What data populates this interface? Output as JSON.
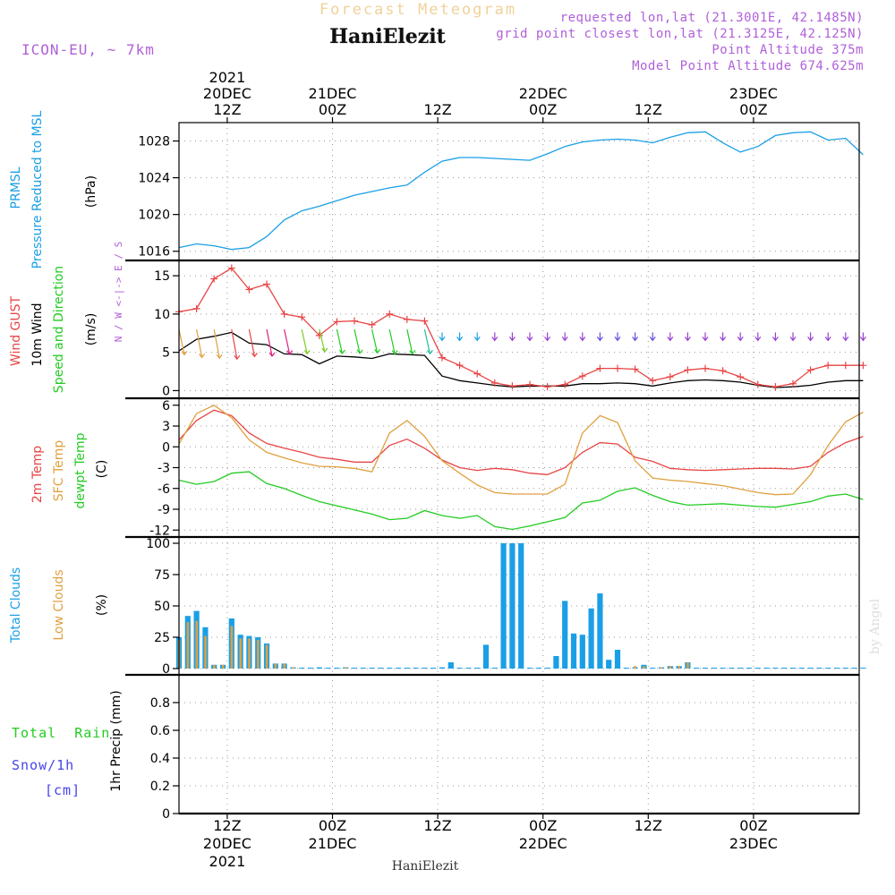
{
  "header": {
    "forecast_title": "Forecast Meteogram",
    "location_name": "HaniElezit",
    "model_label": "ICON-EU, ~ 7km",
    "requested_lonlat": "requested lon,lat (21.3001E, 42.1485N)",
    "grid_point_lonlat": "grid point closest lon,lat (21.3125E, 42.125N)",
    "point_altitude": "Point Altitude 375m",
    "model_point_altitude": "Model Point Altitude 674.625m",
    "footer_name": "HaniElezit",
    "watermark": "by Angel"
  },
  "colors": {
    "pressure": "#1a9fe6",
    "gust": "#e84545",
    "wind": "#000000",
    "temp2m": "#e84545",
    "sfc": "#e0a040",
    "dewpt": "#22cc22",
    "total_clouds": "#1a9fe6",
    "low_clouds": "#e0a040",
    "rain": "#22cc22",
    "snow": "#4444ee",
    "purple": "#b060d8",
    "grid": "#999999"
  },
  "time_axis": {
    "top": [
      {
        "hour": "12Z",
        "date": "20DEC",
        "year": "2021"
      },
      {
        "hour": "00Z",
        "date": "21DEC",
        "year": ""
      },
      {
        "hour": "12Z",
        "date": "",
        "year": ""
      },
      {
        "hour": "00Z",
        "date": "22DEC",
        "year": ""
      },
      {
        "hour": "12Z",
        "date": "",
        "year": ""
      },
      {
        "hour": "00Z",
        "date": "23DEC",
        "year": ""
      }
    ],
    "bottom": [
      {
        "hour": "12Z",
        "date": "20DEC",
        "year": "2021"
      },
      {
        "hour": "00Z",
        "date": "21DEC",
        "year": ""
      },
      {
        "hour": "12Z",
        "date": "",
        "year": ""
      },
      {
        "hour": "00Z",
        "date": "22DEC",
        "year": ""
      },
      {
        "hour": "12Z",
        "date": "",
        "year": ""
      },
      {
        "hour": "00Z",
        "date": "23DEC",
        "year": ""
      }
    ]
  },
  "chart_data": [
    {
      "type": "line",
      "panel": "pressure",
      "title": "PRMSL Pressure Reduced to MSL",
      "ylabel_lines": [
        "PRMSL",
        "Pressure Reduced to MSL"
      ],
      "unit": "(hPa)",
      "ylim": [
        1015,
        1030
      ],
      "yticks": [
        1016,
        1020,
        1024,
        1028
      ],
      "series": [
        {
          "name": "MSL Pressure",
          "color_key": "pressure",
          "x": [
            0,
            2,
            4,
            6,
            8,
            10,
            12,
            14,
            16,
            18,
            20,
            22,
            24,
            26,
            28,
            30,
            32,
            34,
            36,
            38,
            40,
            42,
            44,
            46,
            48,
            50,
            52,
            54,
            56,
            58,
            60,
            62,
            64,
            66,
            68,
            70,
            72,
            74,
            76,
            78
          ],
          "values": [
            1016.4,
            1016.8,
            1016.6,
            1016.2,
            1016.4,
            1017.6,
            1019.4,
            1020.4,
            1020.9,
            1021.5,
            1022.1,
            1022.5,
            1022.9,
            1023.2,
            1024.6,
            1025.8,
            1026.2,
            1026.2,
            1026.1,
            1026.0,
            1025.9,
            1026.6,
            1027.4,
            1027.9,
            1028.1,
            1028.2,
            1028.1,
            1027.8,
            1028.4,
            1028.9,
            1029.0,
            1027.8,
            1026.8,
            1027.4,
            1028.6,
            1028.9,
            1029.0,
            1028.1,
            1028.3,
            1026.5
          ]
        }
      ]
    },
    {
      "type": "line",
      "panel": "wind",
      "title": "Wind GUST / 10m Wind Speed and Direction",
      "ylabel_lines": [
        "Wind GUST",
        "10m Wind",
        "Speed and Direction"
      ],
      "unit": "(m/s)",
      "compass": "N / W <-|-> E / S",
      "ylim": [
        -1,
        17
      ],
      "yticks": [
        0,
        5,
        10,
        15
      ],
      "series": [
        {
          "name": "Wind GUST",
          "color_key": "gust",
          "x": [
            0,
            2,
            4,
            6,
            8,
            10,
            12,
            14,
            16,
            18,
            20,
            22,
            24,
            26,
            28,
            30,
            32,
            34,
            36,
            38,
            40,
            42,
            44,
            46,
            48,
            50,
            52,
            54,
            56,
            58,
            60,
            62,
            64,
            66,
            68,
            70,
            72,
            74,
            76,
            78
          ],
          "values": [
            10.3,
            10.7,
            14.6,
            16.0,
            13.2,
            13.9,
            10.0,
            9.6,
            7.2,
            9.0,
            9.1,
            8.6,
            10.0,
            9.3,
            9.1,
            4.3,
            3.3,
            2.2,
            1.0,
            0.6,
            0.8,
            0.5,
            0.8,
            1.9,
            2.9,
            2.9,
            2.8,
            1.3,
            1.8,
            2.7,
            2.9,
            2.6,
            1.8,
            0.8,
            0.5,
            0.9,
            2.7,
            3.3,
            3.3,
            3.3
          ]
        },
        {
          "name": "10m Wind",
          "color_key": "wind",
          "x": [
            0,
            2,
            4,
            6,
            8,
            10,
            12,
            14,
            16,
            18,
            20,
            22,
            24,
            26,
            28,
            30,
            32,
            34,
            36,
            38,
            40,
            42,
            44,
            46,
            48,
            50,
            52,
            54,
            56,
            58,
            60,
            62,
            64,
            66,
            68,
            70,
            72,
            74,
            76,
            78
          ],
          "values": [
            5.2,
            6.7,
            7.1,
            7.6,
            6.2,
            6.0,
            4.8,
            4.7,
            3.5,
            4.5,
            4.4,
            4.2,
            4.8,
            4.7,
            4.6,
            1.9,
            1.3,
            1.0,
            0.7,
            0.5,
            0.6,
            0.6,
            0.6,
            0.9,
            0.9,
            1.0,
            0.9,
            0.6,
            1.0,
            1.3,
            1.4,
            1.3,
            1.1,
            0.7,
            0.4,
            0.5,
            0.7,
            1.1,
            1.3,
            1.3
          ]
        }
      ]
    },
    {
      "type": "line",
      "panel": "temperature",
      "title": "2m Temp / SFC Temp / dewpt Temp",
      "ylabel_lines": [
        "2m Temp",
        "SFC Temp",
        "dewpt Temp"
      ],
      "unit": "(C)",
      "ylim": [
        -13,
        7
      ],
      "yticks": [
        6,
        3,
        0,
        -3,
        -6,
        -9,
        -12
      ],
      "series": [
        {
          "name": "2m Temp",
          "color_key": "temp2m",
          "x": [
            0,
            2,
            4,
            6,
            8,
            10,
            12,
            14,
            16,
            18,
            20,
            22,
            24,
            26,
            28,
            30,
            32,
            34,
            36,
            38,
            40,
            42,
            44,
            46,
            48,
            50,
            52,
            54,
            56,
            58,
            60,
            62,
            64,
            66,
            68,
            70,
            72,
            74,
            76,
            78
          ],
          "values": [
            1.0,
            3.8,
            5.3,
            4.5,
            2.0,
            0.5,
            -0.2,
            -0.8,
            -1.5,
            -1.8,
            -2.2,
            -2.2,
            0.2,
            1.1,
            -0.2,
            -1.9,
            -3.0,
            -3.4,
            -3.1,
            -3.3,
            -3.8,
            -4.0,
            -3.0,
            -0.8,
            0.6,
            0.4,
            -1.5,
            -2.1,
            -3.1,
            -3.3,
            -3.4,
            -3.3,
            -3.2,
            -3.1,
            -3.1,
            -3.2,
            -2.8,
            -0.8,
            0.6,
            1.5
          ]
        },
        {
          "name": "SFC Temp",
          "color_key": "sfc",
          "x": [
            0,
            2,
            4,
            6,
            8,
            10,
            12,
            14,
            16,
            18,
            20,
            22,
            24,
            26,
            28,
            30,
            32,
            34,
            36,
            38,
            40,
            42,
            44,
            46,
            48,
            50,
            52,
            54,
            56,
            58,
            60,
            62,
            64,
            66,
            68,
            70,
            72,
            74,
            76,
            78
          ],
          "values": [
            0.4,
            4.8,
            6.0,
            4.2,
            1.0,
            -0.8,
            -1.6,
            -2.3,
            -2.8,
            -2.9,
            -3.1,
            -3.6,
            2.0,
            3.8,
            1.5,
            -2.0,
            -3.8,
            -5.5,
            -6.6,
            -6.8,
            -6.8,
            -6.8,
            -5.4,
            2.0,
            4.5,
            3.5,
            -2.0,
            -4.5,
            -4.8,
            -5.0,
            -5.3,
            -5.6,
            -6.1,
            -6.6,
            -6.9,
            -6.8,
            -4.0,
            0.2,
            3.6,
            5.0
          ]
        },
        {
          "name": "dewpt Temp",
          "color_key": "dewpt",
          "x": [
            0,
            2,
            4,
            6,
            8,
            10,
            12,
            14,
            16,
            18,
            20,
            22,
            24,
            26,
            28,
            30,
            32,
            34,
            36,
            38,
            40,
            42,
            44,
            46,
            48,
            50,
            52,
            54,
            56,
            58,
            60,
            62,
            64,
            66,
            68,
            70,
            72,
            74,
            76,
            78
          ],
          "values": [
            -4.8,
            -5.4,
            -5.0,
            -3.8,
            -3.6,
            -5.3,
            -6.0,
            -7.0,
            -7.9,
            -8.5,
            -9.1,
            -9.7,
            -10.5,
            -10.3,
            -9.2,
            -9.9,
            -10.3,
            -9.9,
            -11.5,
            -11.9,
            -11.4,
            -10.8,
            -10.2,
            -8.1,
            -7.7,
            -6.4,
            -5.9,
            -7.0,
            -7.9,
            -8.4,
            -8.3,
            -8.2,
            -8.4,
            -8.6,
            -8.7,
            -8.3,
            -7.9,
            -7.1,
            -6.8,
            -7.6
          ]
        }
      ]
    },
    {
      "type": "bar",
      "panel": "clouds",
      "title": "Total Clouds / Low Clouds",
      "ylabel_lines": [
        "Total Clouds",
        "Low Clouds"
      ],
      "unit": "(%)",
      "ylim": [
        -5,
        105
      ],
      "yticks": [
        0,
        25,
        50,
        75,
        100
      ],
      "x": [
        0,
        1,
        2,
        3,
        4,
        5,
        6,
        7,
        8,
        9,
        10,
        11,
        12,
        13,
        14,
        15,
        16,
        17,
        18,
        19,
        20,
        21,
        22,
        23,
        24,
        25,
        26,
        27,
        28,
        29,
        30,
        31,
        32,
        33,
        34,
        35,
        36,
        37,
        38,
        39,
        40,
        41,
        42,
        43,
        44,
        45,
        46,
        47,
        48,
        49,
        50,
        51,
        52,
        53,
        54,
        55,
        56,
        57,
        58,
        59,
        60,
        61,
        62,
        63,
        64,
        65,
        66,
        67,
        68,
        69,
        70,
        71,
        72,
        73,
        74,
        75,
        76,
        77,
        78
      ],
      "series": [
        {
          "name": "Total Clouds",
          "color_key": "total_clouds",
          "values": [
            25,
            42,
            46,
            33,
            3,
            3,
            40,
            27,
            26,
            25,
            20,
            4,
            4,
            1,
            0,
            0,
            1,
            0,
            0,
            1,
            0,
            0,
            0,
            0,
            0,
            0,
            0,
            0,
            0,
            0,
            1,
            5,
            0,
            0,
            0,
            19,
            0,
            100,
            100,
            100,
            0,
            0,
            0,
            10,
            54,
            28,
            27,
            48,
            60,
            7,
            15,
            0,
            1,
            3,
            0,
            1,
            2,
            2,
            5,
            0,
            0,
            0,
            0,
            0,
            0,
            0,
            0,
            0,
            0,
            0,
            0,
            0,
            0,
            0,
            0,
            0,
            0,
            0,
            0
          ]
        },
        {
          "name": "Low Clouds",
          "color_key": "low_clouds",
          "values": [
            23,
            37,
            38,
            26,
            3,
            3,
            34,
            24,
            24,
            23,
            19,
            4,
            4,
            1,
            0,
            0,
            0,
            0,
            0,
            1,
            0,
            0,
            0,
            0,
            0,
            0,
            0,
            0,
            0,
            0,
            0,
            0,
            0,
            0,
            0,
            0,
            0,
            0,
            0,
            0,
            0,
            0,
            0,
            0,
            0,
            0,
            0,
            0,
            0,
            0,
            0,
            0,
            2,
            2,
            0,
            1,
            2,
            2,
            5,
            0,
            0,
            0,
            0,
            0,
            0,
            0,
            0,
            0,
            0,
            0,
            0,
            0,
            0,
            0,
            0,
            0,
            0,
            0,
            0
          ]
        }
      ]
    },
    {
      "type": "bar",
      "panel": "precip",
      "title": "1hr Precip (mm)",
      "ylabel_lines": [
        "Total  Rain",
        "Snow/1h",
        "[cm]"
      ],
      "unit": "1hr Precip (mm)",
      "ylim": [
        0,
        1
      ],
      "yticks": [
        0,
        0.2,
        0.4,
        0.6,
        0.8
      ],
      "series": [
        {
          "name": "Total Rain",
          "color_key": "rain",
          "values": []
        },
        {
          "name": "Snow/1h",
          "color_key": "snow",
          "values": []
        }
      ]
    }
  ]
}
